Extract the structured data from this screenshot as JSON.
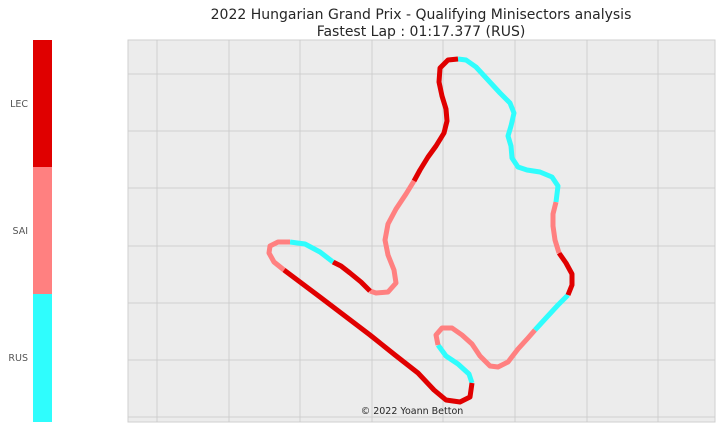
{
  "chart_data": {
    "type": "line",
    "title": "2022 Hungarian Grand Prix - Qualifying Minisectors analysis",
    "subtitle": "Fastest Lap : 01:17.377 (RUS)",
    "credit": "© 2022 Yoann Betton",
    "grid": true,
    "colors": {
      "RUS": "#2ffdfd",
      "SAI": "#ff8080",
      "LEC": "#e00000",
      "plot_background": "#ececec",
      "grid": "#c9c9c9"
    },
    "colorbar": {
      "labels": [
        "LEC",
        "SAI",
        "RUS"
      ]
    },
    "minisectors": [
      {
        "driver": "RUS",
        "path": [
          [
            472,
            383
          ],
          [
            469,
            374
          ],
          [
            458,
            364
          ],
          [
            446,
            356
          ],
          [
            438,
            345
          ]
        ]
      },
      {
        "driver": "SAI",
        "path": [
          [
            438,
            345
          ],
          [
            436,
            335
          ],
          [
            442,
            328
          ],
          [
            452,
            328
          ],
          [
            462,
            335
          ],
          [
            472,
            344
          ],
          [
            480,
            356
          ],
          [
            490,
            366
          ],
          [
            498,
            367
          ],
          [
            508,
            362
          ],
          [
            518,
            349
          ],
          [
            528,
            338
          ],
          [
            535,
            330
          ]
        ]
      },
      {
        "driver": "RUS",
        "path": [
          [
            535,
            330
          ],
          [
            546,
            318
          ],
          [
            558,
            305
          ],
          [
            568,
            295
          ]
        ]
      },
      {
        "driver": "LEC",
        "path": [
          [
            568,
            295
          ],
          [
            572,
            285
          ],
          [
            572,
            274
          ],
          [
            566,
            263
          ],
          [
            559,
            253
          ]
        ]
      },
      {
        "driver": "SAI",
        "path": [
          [
            559,
            253
          ],
          [
            555,
            240
          ],
          [
            553,
            226
          ],
          [
            553,
            214
          ],
          [
            556,
            202
          ]
        ]
      },
      {
        "driver": "RUS",
        "path": [
          [
            556,
            202
          ],
          [
            558,
            186
          ],
          [
            552,
            177
          ],
          [
            540,
            172
          ],
          [
            527,
            170
          ],
          [
            518,
            167
          ],
          [
            512,
            158
          ],
          [
            511,
            146
          ],
          [
            508,
            136
          ],
          [
            511,
            126
          ],
          [
            514,
            113
          ],
          [
            510,
            103
          ],
          [
            500,
            93
          ],
          [
            488,
            80
          ],
          [
            476,
            67
          ],
          [
            466,
            60
          ],
          [
            458,
            59
          ]
        ]
      },
      {
        "driver": "LEC",
        "path": [
          [
            458,
            59
          ],
          [
            448,
            60
          ],
          [
            440,
            68
          ],
          [
            439,
            82
          ],
          [
            442,
            96
          ],
          [
            446,
            109
          ],
          [
            447,
            121
          ],
          [
            444,
            133
          ],
          [
            436,
            146
          ],
          [
            428,
            157
          ],
          [
            420,
            170
          ],
          [
            414,
            181
          ]
        ]
      },
      {
        "driver": "SAI",
        "path": [
          [
            414,
            181
          ],
          [
            406,
            194
          ],
          [
            396,
            209
          ],
          [
            388,
            224
          ],
          [
            385,
            240
          ],
          [
            388,
            255
          ],
          [
            394,
            270
          ],
          [
            396,
            283
          ],
          [
            388,
            292
          ],
          [
            376,
            293
          ],
          [
            370,
            291
          ]
        ]
      },
      {
        "driver": "LEC",
        "path": [
          [
            370,
            291
          ],
          [
            361,
            282
          ],
          [
            350,
            273
          ],
          [
            341,
            266
          ],
          [
            333,
            262
          ]
        ]
      },
      {
        "driver": "RUS",
        "path": [
          [
            333,
            262
          ],
          [
            320,
            252
          ],
          [
            305,
            244
          ],
          [
            290,
            242
          ]
        ]
      },
      {
        "driver": "SAI",
        "path": [
          [
            290,
            242
          ],
          [
            278,
            242
          ],
          [
            270,
            246
          ],
          [
            269,
            253
          ],
          [
            274,
            262
          ],
          [
            284,
            270
          ]
        ]
      },
      {
        "driver": "LEC",
        "path": [
          [
            284,
            270
          ],
          [
            300,
            282
          ],
          [
            320,
            297
          ],
          [
            345,
            316
          ],
          [
            370,
            335
          ],
          [
            395,
            355
          ],
          [
            418,
            373
          ],
          [
            434,
            390
          ],
          [
            446,
            400
          ],
          [
            460,
            402
          ],
          [
            470,
            397
          ],
          [
            472,
            383
          ]
        ]
      }
    ]
  }
}
